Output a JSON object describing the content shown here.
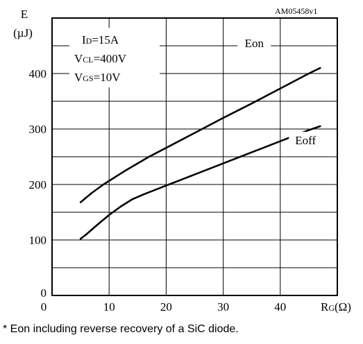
{
  "chart_data": {
    "type": "line",
    "watermark": "AM05458v1",
    "y_axis_title_line1": "E",
    "y_axis_title_line2": "(µJ)",
    "x_axis_title": "RG(Ω)",
    "x_ticks": [
      "0",
      "10",
      "20",
      "30",
      "40"
    ],
    "y_ticks": [
      "0",
      "100",
      "200",
      "300",
      "400"
    ],
    "xlim": [
      0,
      50
    ],
    "ylim": [
      0,
      500
    ],
    "grid": true,
    "conditions": [
      "ID=15A",
      "VCL=400V",
      "VGS=10V"
    ],
    "series": [
      {
        "name": "Eon",
        "x": [
          5,
          7,
          9,
          11,
          13,
          15,
          17,
          20,
          25,
          30,
          35,
          40,
          45,
          47
        ],
        "y": [
          168,
          185,
          200,
          213,
          226,
          238,
          250,
          266,
          293,
          320,
          346,
          373,
          400,
          410
        ]
      },
      {
        "name": "Eoff",
        "x": [
          5,
          6,
          8,
          10,
          12,
          14,
          16,
          20,
          25,
          30,
          35,
          40,
          45,
          47
        ],
        "y": [
          102,
          110,
          128,
          145,
          160,
          173,
          182,
          198,
          218,
          238,
          258,
          278,
          298,
          305
        ]
      }
    ]
  },
  "footnote": "* Eon including reverse recovery of a SiC diode."
}
